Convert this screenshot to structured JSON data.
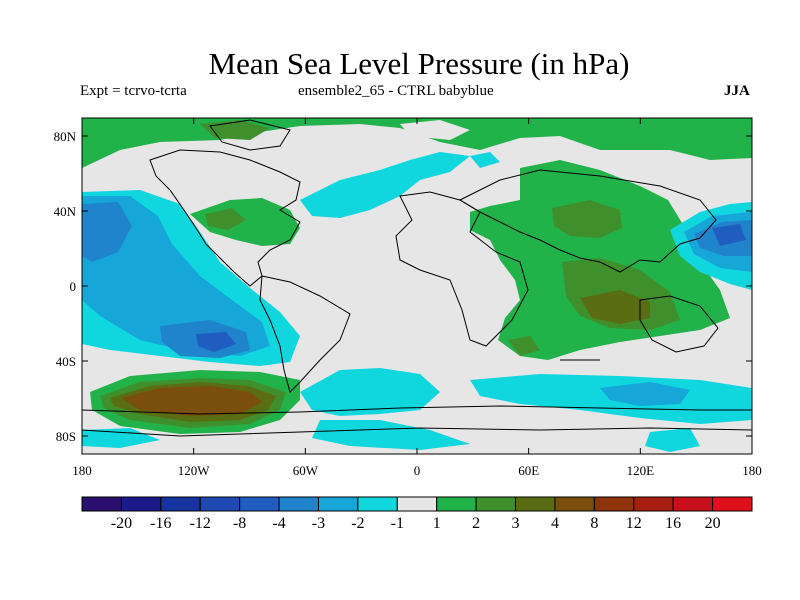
{
  "title": "Mean Sea Level Pressure (in hPa)",
  "subtitle_left": "Expt = tcrvo-tcrta",
  "subtitle_center": "ensemble2_65 - CTRL babyblue",
  "season": "JJA",
  "lat_ticks": [
    "80N",
    "40N",
    "0",
    "40S",
    "80S"
  ],
  "lon_ticks": [
    "180",
    "120W",
    "60W",
    "0",
    "60E",
    "120E",
    "180"
  ],
  "colorbar": {
    "labels": [
      "-20",
      "-16",
      "-12",
      "-8",
      "-4",
      "-3",
      "-2",
      "-1",
      "1",
      "2",
      "3",
      "4",
      "8",
      "12",
      "16",
      "20"
    ],
    "colors": [
      "#2a0f6e",
      "#1a1a8a",
      "#1633a0",
      "#1c49b2",
      "#1f5ec0",
      "#1f84cc",
      "#16a6d8",
      "#10d6de",
      "#e6e6e6",
      "#22b24a",
      "#3f8f2d",
      "#5a6d12",
      "#7a4e0c",
      "#8f330d",
      "#a81f10",
      "#c8101a",
      "#e0101a"
    ]
  },
  "colors": {
    "background": "#e6e6e6",
    "neg1": "#10d6de",
    "neg2": "#16a6d8",
    "neg3": "#1f84cc",
    "neg4": "#1f5ec0",
    "pos1": "#22b24a",
    "pos2": "#3f8f2d",
    "pos3": "#5a6d12",
    "pos4": "#7a4e0c"
  }
}
